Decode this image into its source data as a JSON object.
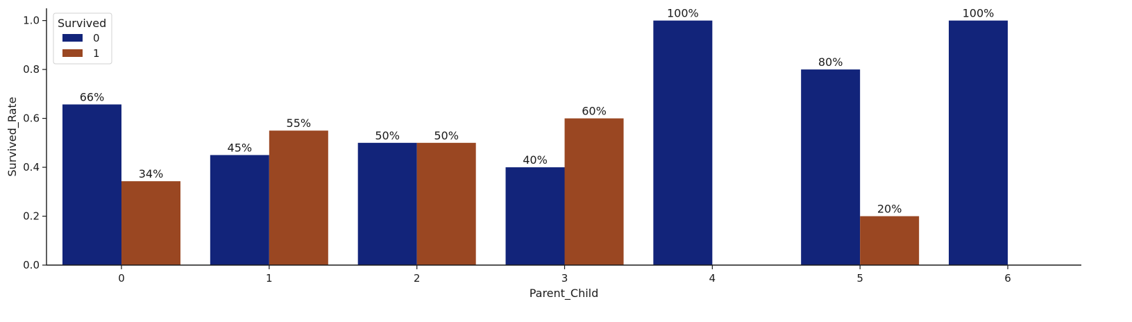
{
  "chart_data": {
    "type": "bar",
    "categories": [
      "0",
      "1",
      "2",
      "3",
      "4",
      "5",
      "6"
    ],
    "series": [
      {
        "name": "0",
        "color": "#12247a",
        "values": [
          0.657,
          0.45,
          0.5,
          0.4,
          1.0,
          0.8,
          1.0
        ],
        "labels": [
          "66%",
          "45%",
          "50%",
          "40%",
          "100%",
          "80%",
          "100%"
        ]
      },
      {
        "name": "1",
        "color": "#9a4722",
        "values": [
          0.343,
          0.55,
          0.5,
          0.6,
          null,
          0.2,
          null
        ],
        "labels": [
          "34%",
          "55%",
          "50%",
          "60%",
          "",
          "20%",
          ""
        ]
      }
    ],
    "xlabel": "Parent_Child",
    "ylabel": "Survived_Rate",
    "ylim": [
      0,
      1.05
    ],
    "yticks": [
      "0.0",
      "0.2",
      "0.4",
      "0.6",
      "0.8",
      "1.0"
    ],
    "legend": {
      "title": "Survived",
      "placement": "top-left"
    },
    "grid": false
  }
}
